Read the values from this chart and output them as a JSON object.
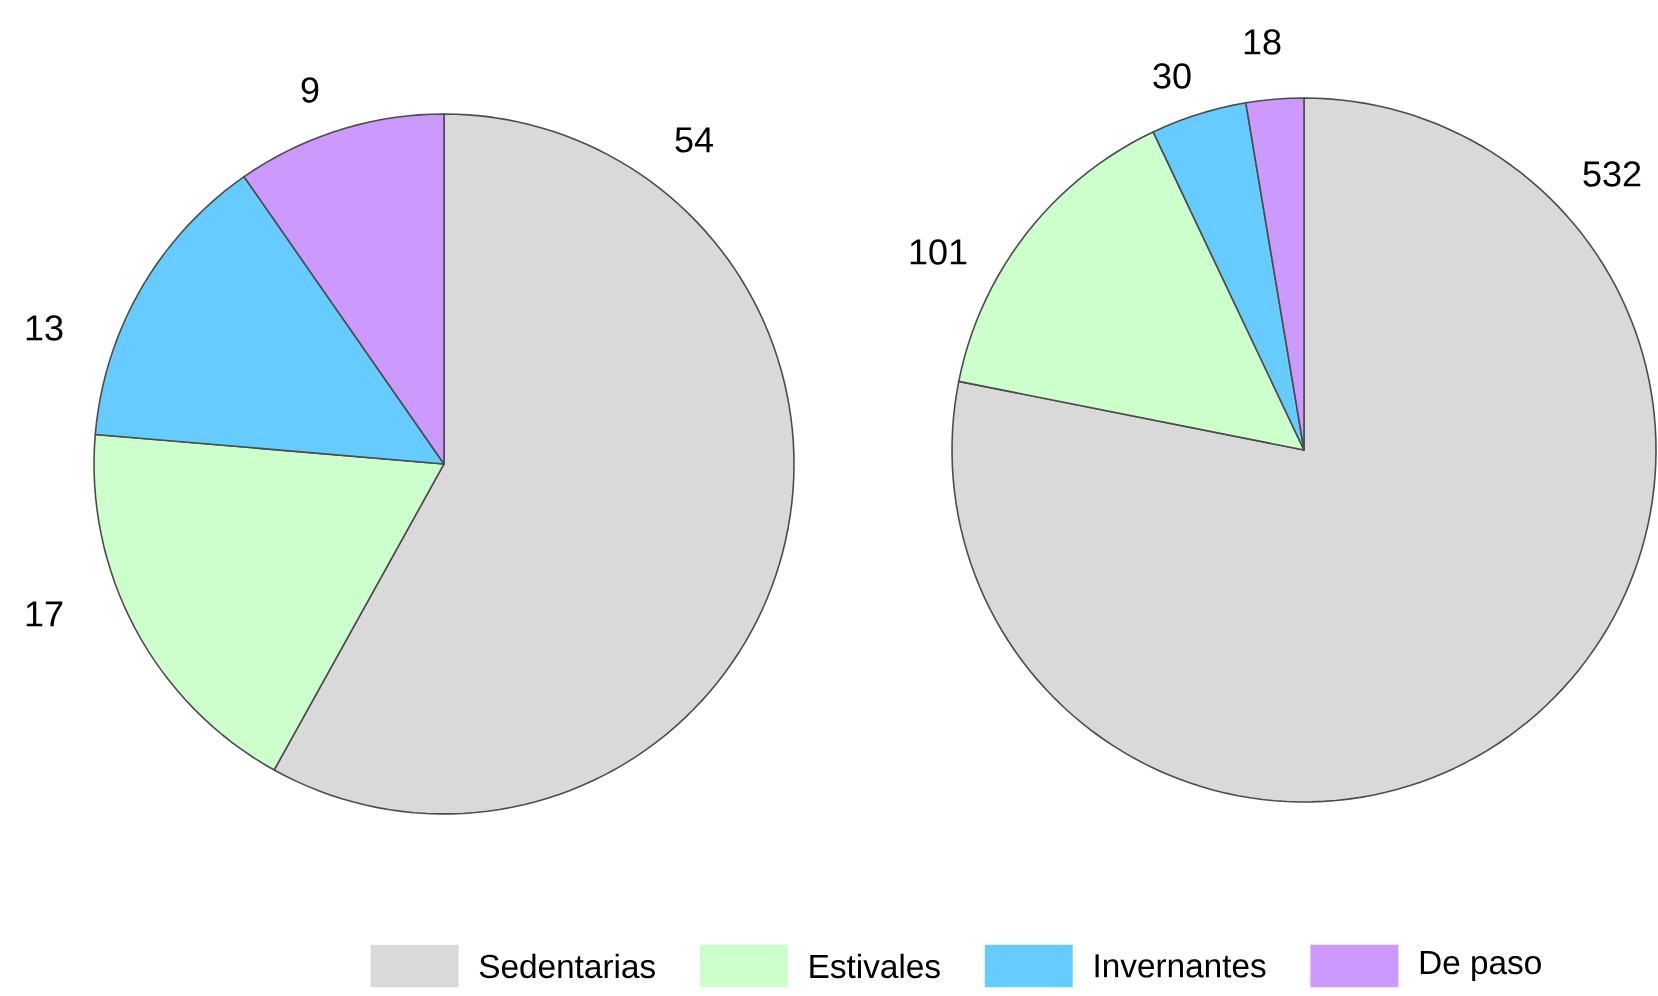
{
  "chart_data": [
    {
      "type": "pie",
      "categories": [
        "Sedentarias",
        "Estivales",
        "Invernantes",
        "De paso"
      ],
      "values": [
        54,
        17,
        13,
        9
      ],
      "colors": [
        "#d9d9d9",
        "#ccffcc",
        "#66ccff",
        "#cc99ff"
      ],
      "data_labels": true,
      "legend": "bottom"
    },
    {
      "type": "pie",
      "categories": [
        null,
        null,
        null,
        null
      ],
      "values": [
        532,
        101,
        30,
        18
      ],
      "colors": [
        "#d9d9d9",
        "#ccffcc",
        "#66ccff",
        "#cc99ff"
      ],
      "data_labels": true
    }
  ]
}
